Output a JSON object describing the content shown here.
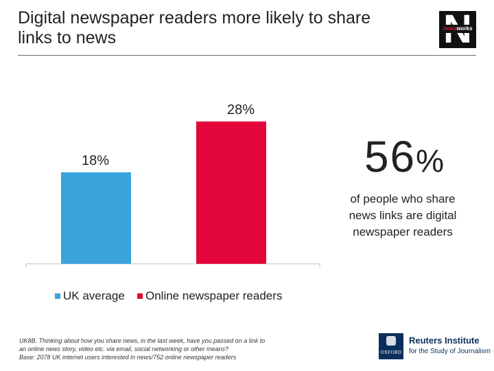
{
  "title": "Digital newspaper readers more likely to share links to news",
  "logo": {
    "text_a": "news",
    "text_b": "works",
    "letter": "N"
  },
  "chart_data": {
    "type": "bar",
    "categories": [
      "UK average",
      "Online newspaper readers"
    ],
    "values": [
      18,
      28
    ],
    "value_labels": [
      "18%",
      "28%"
    ],
    "colors": [
      "#3aa3db",
      "#e2063a"
    ],
    "ylim": [
      0,
      40
    ],
    "legend": [
      "UK average",
      "Online newspaper readers"
    ],
    "legend_position": "bottom",
    "grid": false
  },
  "stat": {
    "number": "56",
    "unit": "%",
    "text": "of people who share news links are digital newspaper readers"
  },
  "footnote": {
    "line1": "UK8B. Thinking about how you share news, in the last week, have you passed on a link to",
    "line2": "an online news story, video etc. via email, social networking or other means?",
    "line3": "Base: 2078 UK internet users interested in news/752 online newspaper readers"
  },
  "reuters": {
    "title": "Reuters Institute",
    "subtitle": "for the Study of Journalism",
    "oxford": "OXFORD"
  }
}
